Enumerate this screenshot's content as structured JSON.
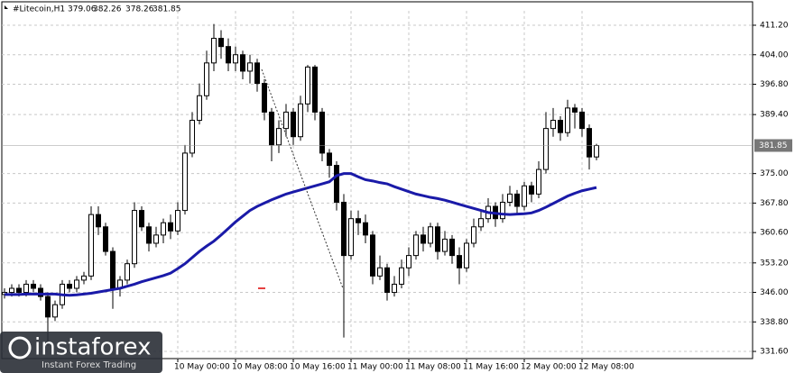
{
  "chart_data": {
    "type": "candlestick",
    "title": "#Litecoin,H1",
    "categories": [
      null,
      null,
      null,
      null,
      null,
      null,
      null,
      null,
      null,
      null,
      null,
      null,
      null,
      null,
      null,
      null,
      null,
      null,
      null,
      null,
      null,
      null,
      null,
      null,
      "10 May 00:00",
      null,
      null,
      null,
      null,
      null,
      null,
      null,
      "10 May 08:00",
      null,
      null,
      null,
      null,
      null,
      null,
      null,
      "10 May 16:00",
      null,
      null,
      null,
      null,
      null,
      null,
      null,
      "11 May 00:00",
      null,
      null,
      null,
      null,
      null,
      null,
      null,
      "11 May 08:00",
      null,
      null,
      null,
      null,
      null,
      null,
      null,
      "11 May 16:00",
      null,
      null,
      null,
      null,
      null,
      null,
      null,
      "12 May 00:00",
      null,
      null,
      null,
      null,
      null,
      null,
      null,
      "12 May 08:00",
      null,
      null
    ],
    "open": [
      345.5,
      346,
      347,
      346,
      348,
      347,
      345,
      340,
      343,
      348,
      347,
      349,
      350,
      365,
      362,
      356,
      347,
      349,
      353,
      366,
      362,
      358,
      360,
      363,
      361,
      366,
      380,
      388,
      394,
      402,
      408,
      406,
      402,
      404,
      400,
      402,
      397,
      390,
      382,
      386,
      390,
      384,
      392,
      401,
      390,
      380,
      377,
      368,
      355,
      364,
      363,
      360,
      350,
      352,
      346,
      348,
      352,
      355,
      360,
      358,
      362,
      356,
      359,
      355,
      352,
      358,
      362,
      364,
      367,
      364,
      368,
      370,
      367,
      372,
      370,
      376,
      386,
      388,
      385,
      391,
      390,
      386,
      379.06
    ],
    "high": [
      347,
      348,
      348,
      349,
      349,
      348,
      346,
      344,
      349,
      349,
      350,
      351,
      367,
      367,
      363,
      357,
      350,
      354,
      368,
      367,
      363,
      362,
      364,
      365,
      368,
      382,
      390,
      397,
      405,
      411.5,
      410,
      408,
      406,
      405,
      404,
      403,
      398,
      391,
      388,
      392,
      391,
      394,
      401.5,
      401.5,
      391,
      381,
      378,
      370,
      366,
      366,
      365,
      361,
      355,
      353,
      350,
      354,
      357,
      361,
      362,
      363,
      363,
      361,
      360,
      357,
      359,
      364,
      366,
      369,
      368,
      370,
      372,
      371,
      373,
      373,
      378,
      390,
      391,
      389,
      393,
      392,
      391,
      387,
      382.26
    ],
    "low": [
      344.5,
      345,
      345,
      345,
      346,
      344,
      333,
      339,
      342,
      346,
      346,
      348,
      349,
      360,
      355,
      342,
      345,
      348,
      352,
      361,
      356,
      357,
      358,
      359,
      360,
      365,
      379,
      387,
      393,
      400,
      403,
      400,
      400,
      398,
      397,
      395,
      388,
      378,
      380,
      384,
      382,
      383,
      390,
      388,
      378,
      374,
      366,
      335,
      354,
      360,
      358,
      348,
      349,
      344,
      345,
      347,
      350,
      354,
      356,
      357,
      354,
      355,
      353,
      348,
      351,
      357,
      361,
      363,
      362,
      363,
      367,
      365,
      366,
      368,
      369,
      375,
      384,
      383,
      384,
      386,
      384,
      376,
      378.26
    ],
    "close": [
      346,
      347,
      346,
      348,
      347,
      345,
      340,
      343,
      348,
      347,
      349,
      350,
      365,
      362,
      356,
      347,
      349,
      353,
      366,
      362,
      358,
      360,
      363,
      361,
      366,
      380,
      388,
      394,
      402,
      408,
      406,
      402,
      404,
      400,
      402,
      397,
      390,
      382,
      386,
      390,
      384,
      392,
      401,
      390,
      380,
      377,
      368,
      355,
      364,
      363,
      360,
      350,
      352,
      346,
      348,
      352,
      355,
      360,
      358,
      362,
      356,
      359,
      355,
      352,
      358,
      362,
      364,
      367,
      364,
      368,
      370,
      367,
      372,
      370,
      376,
      386,
      388,
      385,
      391,
      390,
      386,
      379.06,
      381.85
    ],
    "ma": {
      "color": "#1a1aa8",
      "values": [
        345.5,
        345.5,
        345.5,
        345.6,
        345.6,
        345.6,
        345.6,
        345.6,
        345.4,
        345.3,
        345.4,
        345.6,
        345.8,
        346.1,
        346.4,
        346.7,
        347,
        347.5,
        348,
        348.6,
        349.1,
        349.6,
        350.1,
        350.7,
        351.8,
        353,
        354.5,
        356,
        357.3,
        358.5,
        360,
        361.6,
        363.2,
        364.6,
        366,
        367,
        367.8,
        368.6,
        369.3,
        370,
        370.5,
        371,
        371.5,
        372,
        372.5,
        373,
        374.5,
        375,
        375,
        374.2,
        373.5,
        373.2,
        372.8,
        372.5,
        371.8,
        371.2,
        370.6,
        370,
        369.6,
        369.2,
        368.9,
        368.5,
        368,
        367.5,
        367,
        366.5,
        366,
        365.5,
        365.3,
        365.1,
        365,
        365.1,
        365.2,
        365.4,
        366,
        366.8,
        367.7,
        368.6,
        369.5,
        370.2,
        370.8,
        371.2,
        371.6
      ]
    },
    "ylim": [
      329.85,
      414.72
    ],
    "yticks": [
      {
        "value": 411.2,
        "label": "411.20"
      },
      {
        "value": 404,
        "label": "404.00"
      },
      {
        "value": 396.8,
        "label": "396.80"
      },
      {
        "value": 389.4,
        "label": "389.40"
      },
      {
        "value": 375,
        "label": "375.00"
      },
      {
        "value": 367.8,
        "label": "367.80"
      },
      {
        "value": 360.6,
        "label": "360.60"
      },
      {
        "value": 353.2,
        "label": "353.20"
      },
      {
        "value": 346,
        "label": "346.00"
      },
      {
        "value": 338.8,
        "label": "338.80"
      },
      {
        "value": 331.6,
        "label": "331.60"
      }
    ],
    "grid": true
  },
  "watermark": {
    "brand": "instaforex",
    "slogan": "Instant Forex Trading"
  }
}
